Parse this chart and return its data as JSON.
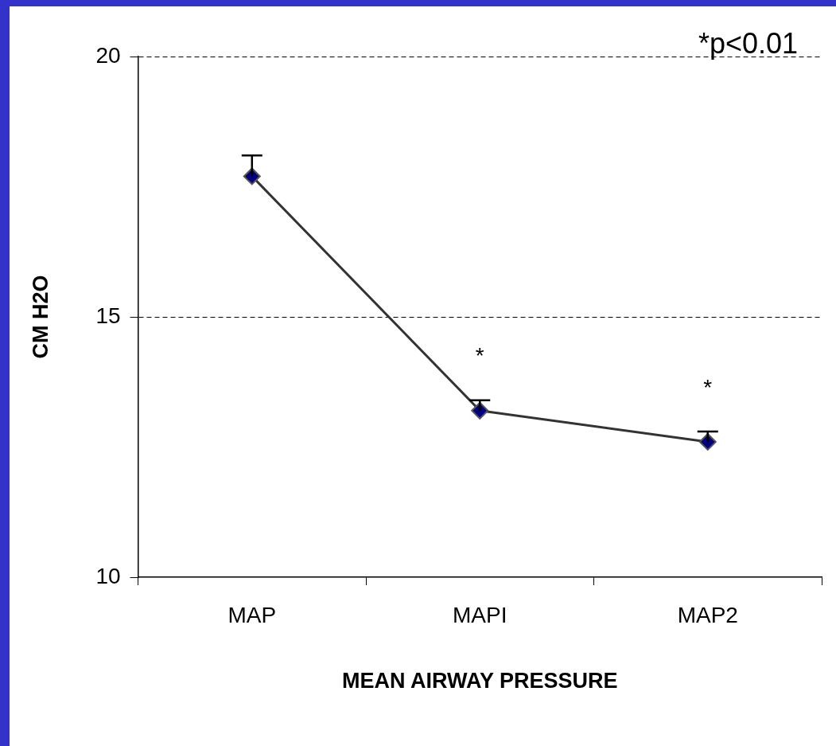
{
  "chart_data": {
    "type": "line",
    "categories": [
      "MAP",
      "MAPI",
      "MAP2"
    ],
    "series": [
      {
        "color": "#000080",
        "values": [
          17.7,
          13.2,
          12.6
        ],
        "errors": [
          [
            17.7,
            18.1
          ],
          [
            13.2,
            13.4
          ],
          [
            12.6,
            12.8
          ]
        ]
      }
    ],
    "ylim": [
      10,
      20
    ],
    "yticks": [
      10,
      15,
      20
    ],
    "grid": "y",
    "marker": "diamond",
    "line_style": "solid",
    "legend": false,
    "xlabel": "MEAN AIRWAY PRESSURE",
    "ylabel": "CM H2O",
    "annotations": [
      "*p<0.01",
      "*",
      "*"
    ]
  }
}
